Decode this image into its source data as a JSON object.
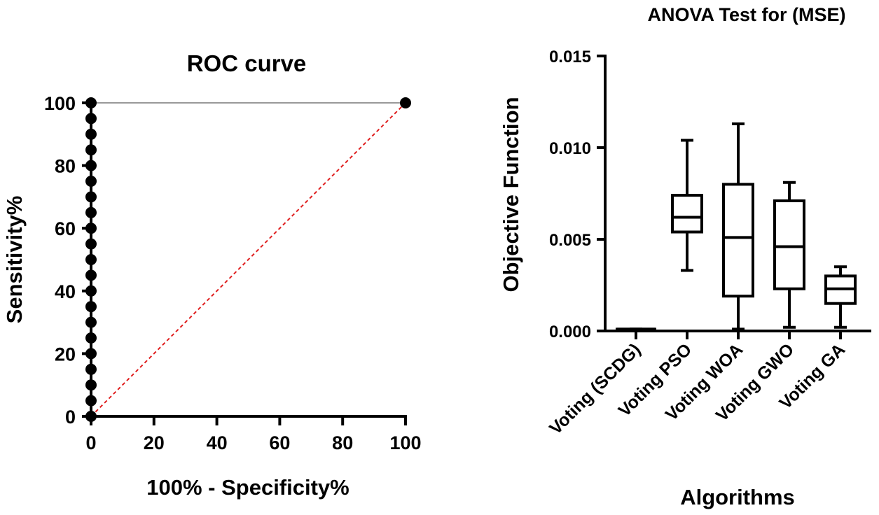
{
  "chart_data": [
    {
      "type": "line",
      "title": "ROC curve",
      "xlabel": "100% - Specificity%",
      "ylabel": "Sensitivity%",
      "xlim": [
        0,
        100
      ],
      "ylim": [
        0,
        100
      ],
      "xticks": [
        0,
        20,
        40,
        60,
        80,
        100
      ],
      "yticks": [
        0,
        20,
        40,
        60,
        80,
        100
      ],
      "series": [
        {
          "color": "#000000",
          "x": [
            0,
            0,
            0,
            0,
            0,
            0,
            0,
            0,
            0,
            0,
            0,
            0,
            0,
            0,
            0,
            0,
            0,
            0,
            0,
            0,
            0,
            100
          ],
          "y": [
            0,
            5,
            10,
            15,
            20,
            25,
            30,
            35,
            40,
            45,
            50,
            55,
            60,
            65,
            70,
            75,
            80,
            85,
            90,
            95,
            100,
            100
          ]
        },
        {
          "color": "#e02020",
          "style": "dashed",
          "x": [
            0,
            100
          ],
          "y": [
            0,
            100
          ]
        }
      ],
      "top_line_color": "#999999"
    },
    {
      "type": "box",
      "title": "ANOVA Test for (MSE)",
      "xlabel": "Algorithms",
      "ylabel": "Objective Function",
      "ylim": [
        0,
        0.015
      ],
      "yticks": [
        "0.000",
        "0.005",
        "0.010",
        "0.015"
      ],
      "categories": [
        "Voting (SCDG)",
        "Voting PSO",
        "Voting WOA",
        "Voting GWO",
        "Voting GA"
      ],
      "boxes": [
        {
          "min": 0.0001,
          "q1": 0.0001,
          "median": 0.0001,
          "q3": 0.0001,
          "max": 0.0001
        },
        {
          "min": 0.0033,
          "q1": 0.0054,
          "median": 0.0062,
          "q3": 0.0074,
          "max": 0.0104
        },
        {
          "min": 0.0001,
          "q1": 0.0019,
          "median": 0.0051,
          "q3": 0.008,
          "max": 0.0113
        },
        {
          "min": 0.0002,
          "q1": 0.0023,
          "median": 0.0046,
          "q3": 0.0071,
          "max": 0.0081
        },
        {
          "min": 0.0002,
          "q1": 0.0015,
          "median": 0.0023,
          "q3": 0.003,
          "max": 0.0035
        }
      ]
    }
  ]
}
